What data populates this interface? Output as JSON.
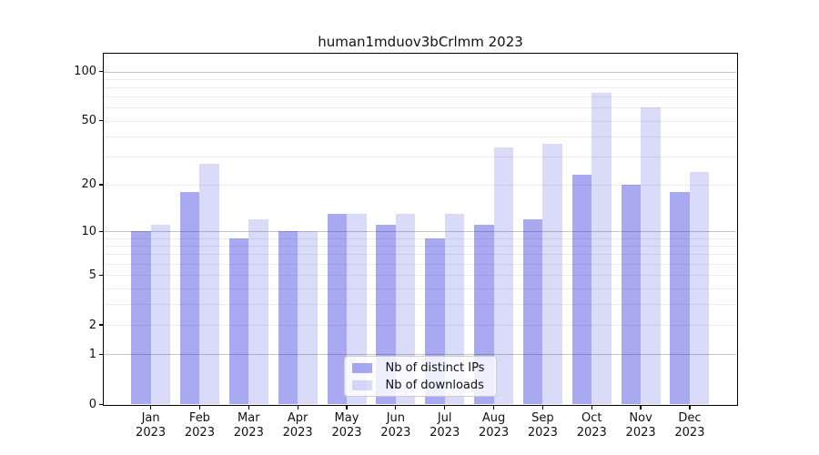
{
  "chart_data": {
    "type": "bar",
    "title": "human1mduov3bCrlmm 2023",
    "categories": [
      "Jan",
      "Feb",
      "Mar",
      "Apr",
      "May",
      "Jun",
      "Jul",
      "Aug",
      "Sep",
      "Oct",
      "Nov",
      "Dec"
    ],
    "year": "2023",
    "series": [
      {
        "name": "Nb of distinct IPs",
        "color": "rgba(10,10,215,0.35)",
        "values": [
          10,
          18,
          9,
          10,
          13,
          11,
          9,
          11,
          12,
          23,
          20,
          18
        ]
      },
      {
        "name": "Nb of downloads",
        "color": "rgba(10,10,215,0.15)",
        "values": [
          11,
          27,
          12,
          10,
          13,
          13,
          13,
          34,
          36,
          74,
          60,
          24
        ]
      }
    ],
    "xlabel": "",
    "ylabel": "",
    "yscale": "log1p",
    "ylim": [
      0,
      100
    ],
    "yticks": [
      0,
      1,
      2,
      5,
      10,
      20,
      50,
      100
    ],
    "grid": {
      "minor_values": [
        2,
        3,
        4,
        5,
        6,
        7,
        8,
        9,
        20,
        30,
        40,
        50,
        60,
        70,
        80,
        90
      ],
      "major_values": [
        1,
        10,
        100
      ],
      "minor_color": "#ebebeb",
      "major_color": "#c6c6c6"
    },
    "legend_position": "lower center"
  }
}
